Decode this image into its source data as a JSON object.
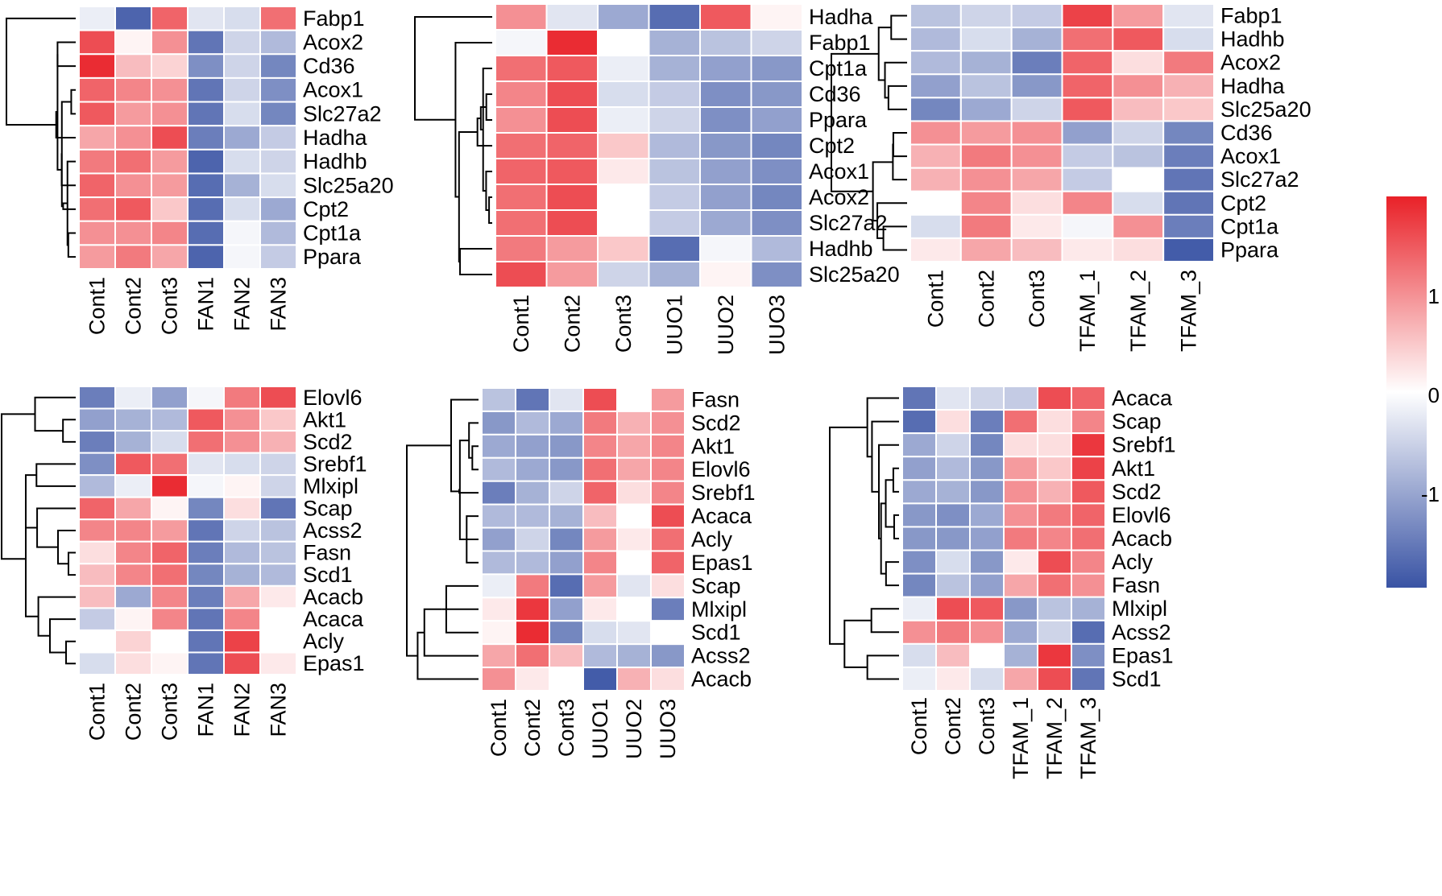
{
  "chart_data": [
    {
      "type": "heatmap",
      "panel": "fatty-acid-oxidation-fan",
      "columns": [
        "Cont1",
        "Cont2",
        "Cont3",
        "FAN1",
        "FAN2",
        "FAN3"
      ],
      "rows": [
        "Fabp1",
        "Acox2",
        "Cd36",
        "Acox1",
        "Slc27a2",
        "Hadha",
        "Hadhb",
        "Slc25a20",
        "Cpt2",
        "Cpt1a",
        "Ppara"
      ],
      "values": [
        [
          -0.2,
          -1.8,
          1.4,
          -0.3,
          -0.4,
          1.3
        ],
        [
          1.6,
          0.1,
          1.0,
          -1.6,
          -0.5,
          -0.8
        ],
        [
          1.9,
          0.6,
          0.4,
          -1.3,
          -0.5,
          -1.4
        ],
        [
          1.4,
          1.1,
          1.0,
          -1.6,
          -0.5,
          -1.3
        ],
        [
          1.5,
          0.9,
          1.0,
          -1.6,
          -0.4,
          -1.4
        ],
        [
          0.8,
          1.0,
          1.6,
          -1.5,
          -1.0,
          -0.6
        ],
        [
          1.2,
          1.3,
          0.9,
          -1.8,
          -0.4,
          -0.5
        ],
        [
          1.4,
          1.0,
          0.9,
          -1.7,
          -0.9,
          -0.4
        ],
        [
          1.3,
          1.5,
          0.5,
          -1.7,
          -0.4,
          -1.0
        ],
        [
          1.0,
          1.0,
          1.1,
          -1.7,
          -0.1,
          -0.8
        ],
        [
          0.9,
          1.2,
          0.8,
          -1.8,
          -0.1,
          -0.6
        ]
      ],
      "clustered": true
    },
    {
      "type": "heatmap",
      "panel": "fatty-acid-oxidation-uuo",
      "columns": [
        "Cont1",
        "Cont2",
        "Cont3",
        "UUO1",
        "UUO2",
        "UUO3"
      ],
      "rows": [
        "Hadha",
        "Fabp1",
        "Cpt1a",
        "Cd36",
        "Ppara",
        "Cpt2",
        "Acox1",
        "Acox2",
        "Slc27a2",
        "Hadhb",
        "Slc25a20"
      ],
      "values": [
        [
          1.0,
          -0.3,
          -1.0,
          -1.7,
          1.5,
          0.1
        ],
        [
          -0.1,
          1.9,
          0.0,
          -0.9,
          -0.7,
          -0.5
        ],
        [
          1.3,
          1.5,
          -0.2,
          -0.9,
          -1.1,
          -1.2
        ],
        [
          1.1,
          1.6,
          -0.4,
          -0.6,
          -1.3,
          -1.2
        ],
        [
          1.0,
          1.6,
          -0.2,
          -0.5,
          -1.3,
          -1.1
        ],
        [
          1.3,
          1.4,
          0.5,
          -0.8,
          -1.2,
          -1.4
        ],
        [
          1.4,
          1.5,
          0.2,
          -0.7,
          -1.1,
          -1.3
        ],
        [
          1.3,
          1.6,
          0.0,
          -0.6,
          -1.1,
          -1.4
        ],
        [
          1.3,
          1.6,
          0.0,
          -0.6,
          -1.0,
          -1.3
        ],
        [
          1.2,
          0.9,
          0.5,
          -1.7,
          -0.1,
          -0.8
        ],
        [
          1.6,
          0.9,
          -0.5,
          -0.9,
          0.1,
          -1.3
        ]
      ],
      "clustered": true
    },
    {
      "type": "heatmap",
      "panel": "fatty-acid-oxidation-tfam",
      "columns": [
        "Cont1",
        "Cont2",
        "Cont3",
        "TFAM_1",
        "TFAM_2",
        "TFAM_3"
      ],
      "rows": [
        "Fabp1",
        "Hadhb",
        "Acox2",
        "Hadha",
        "Slc25a20",
        "Cd36",
        "Acox1",
        "Slc27a2",
        "Cpt2",
        "Cpt1a",
        "Ppara"
      ],
      "values": [
        [
          -0.7,
          -0.5,
          -0.6,
          1.7,
          0.9,
          -0.3
        ],
        [
          -0.8,
          -0.4,
          -0.9,
          1.3,
          1.5,
          -0.4
        ],
        [
          -0.8,
          -0.9,
          -1.5,
          1.4,
          0.3,
          1.2
        ],
        [
          -1.1,
          -0.7,
          -1.2,
          1.4,
          1.0,
          0.7
        ],
        [
          -1.4,
          -1.0,
          -0.5,
          1.5,
          0.6,
          0.5
        ],
        [
          1.0,
          0.9,
          1.0,
          -1.1,
          -0.5,
          -1.4
        ],
        [
          0.7,
          1.2,
          1.0,
          -0.6,
          -0.7,
          -1.5
        ],
        [
          0.7,
          1.0,
          0.8,
          -0.6,
          0.0,
          -1.6
        ],
        [
          0.0,
          1.1,
          0.3,
          1.1,
          -0.4,
          -1.6
        ],
        [
          -0.4,
          1.2,
          0.2,
          -0.1,
          1.0,
          -1.5
        ],
        [
          0.2,
          0.8,
          0.6,
          0.2,
          0.3,
          -1.9
        ]
      ],
      "clustered": true
    },
    {
      "type": "heatmap",
      "panel": "lipogenesis-fan",
      "columns": [
        "Cont1",
        "Cont2",
        "Cont3",
        "FAN1",
        "FAN2",
        "FAN3"
      ],
      "rows": [
        "Elovl6",
        "Akt1",
        "Scd2",
        "Srebf1",
        "Mlxipl",
        "Scap",
        "Acss2",
        "Fasn",
        "Scd1",
        "Acacb",
        "Acaca",
        "Acly",
        "Epas1"
      ],
      "values": [
        [
          -1.5,
          -0.2,
          -1.1,
          -0.1,
          1.2,
          1.6
        ],
        [
          -1.1,
          -0.9,
          -0.8,
          1.5,
          1.0,
          0.5
        ],
        [
          -1.5,
          -0.9,
          -0.4,
          1.3,
          1.0,
          0.7
        ],
        [
          -1.3,
          1.5,
          1.3,
          -0.3,
          -0.4,
          -0.5
        ],
        [
          -0.8,
          -0.2,
          1.9,
          -0.1,
          0.1,
          -0.5
        ],
        [
          1.4,
          0.8,
          0.1,
          -1.4,
          0.3,
          -1.6
        ],
        [
          1.1,
          1.1,
          0.9,
          -1.6,
          -0.5,
          -0.7
        ],
        [
          0.3,
          1.1,
          1.4,
          -1.5,
          -0.8,
          -0.7
        ],
        [
          0.6,
          1.1,
          1.3,
          -1.4,
          -0.9,
          -0.8
        ],
        [
          0.6,
          -1.0,
          1.1,
          -1.5,
          0.8,
          0.2
        ],
        [
          -0.6,
          0.1,
          1.1,
          -1.6,
          1.1,
          0.0
        ],
        [
          0.0,
          0.4,
          0.0,
          -1.6,
          1.7,
          0.0
        ],
        [
          -0.4,
          0.3,
          0.1,
          -1.6,
          1.6,
          0.2
        ]
      ],
      "clustered": true
    },
    {
      "type": "heatmap",
      "panel": "lipogenesis-uuo",
      "columns": [
        "Cont1",
        "Cont2",
        "Cont3",
        "UUO1",
        "UUO2",
        "UUO3"
      ],
      "rows": [
        "Fasn",
        "Scd2",
        "Akt1",
        "Elovl6",
        "Srebf1",
        "Acaca",
        "Acly",
        "Epas1",
        "Scap",
        "Mlxipl",
        "Scd1",
        "Acss2",
        "Acacb"
      ],
      "values": [
        [
          -0.7,
          -1.6,
          -0.3,
          1.6,
          0.0,
          0.9
        ],
        [
          -1.2,
          -0.8,
          -1.0,
          1.2,
          0.7,
          1.0
        ],
        [
          -1.0,
          -1.1,
          -1.2,
          1.1,
          0.8,
          1.1
        ],
        [
          -0.8,
          -1.0,
          -1.2,
          1.3,
          0.8,
          1.1
        ],
        [
          -1.5,
          -0.9,
          -0.5,
          1.4,
          0.3,
          1.1
        ],
        [
          -0.8,
          -0.8,
          -0.9,
          0.6,
          0.0,
          1.6
        ],
        [
          -1.1,
          -0.5,
          -1.4,
          0.9,
          0.2,
          1.3
        ],
        [
          -0.8,
          -0.8,
          -1.1,
          1.1,
          0.0,
          1.4
        ],
        [
          -0.2,
          1.2,
          -1.7,
          0.9,
          -0.3,
          0.3
        ],
        [
          0.2,
          1.8,
          -1.1,
          0.2,
          0.0,
          -1.5
        ],
        [
          0.1,
          1.9,
          -1.4,
          -0.4,
          -0.3,
          0.0
        ],
        [
          0.8,
          1.3,
          0.6,
          -0.8,
          -0.9,
          -1.2
        ],
        [
          1.0,
          0.2,
          0.0,
          -1.9,
          0.7,
          0.3
        ]
      ],
      "clustered": true
    },
    {
      "type": "heatmap",
      "panel": "lipogenesis-tfam",
      "columns": [
        "Cont1",
        "Cont2",
        "Cont3",
        "TFAM_1",
        "TFAM_2",
        "TFAM_3"
      ],
      "rows": [
        "Acaca",
        "Scap",
        "Srebf1",
        "Akt1",
        "Scd2",
        "Elovl6",
        "Acacb",
        "Acly",
        "Fasn",
        "Mlxipl",
        "Acss2",
        "Epas1",
        "Scd1"
      ],
      "values": [
        [
          -1.6,
          -0.3,
          -0.5,
          -0.6,
          1.6,
          1.4
        ],
        [
          -1.7,
          0.3,
          -1.5,
          1.3,
          0.3,
          1.1
        ],
        [
          -1.0,
          -0.5,
          -1.4,
          0.3,
          0.3,
          1.8
        ],
        [
          -1.1,
          -0.8,
          -1.2,
          0.9,
          0.5,
          1.7
        ],
        [
          -1.0,
          -0.9,
          -1.2,
          1.0,
          0.7,
          1.5
        ],
        [
          -1.2,
          -1.3,
          -1.0,
          1.0,
          1.2,
          1.4
        ],
        [
          -1.2,
          -1.2,
          -1.1,
          1.2,
          1.1,
          1.3
        ],
        [
          -1.3,
          -0.4,
          -1.2,
          0.2,
          1.6,
          1.1
        ],
        [
          -1.4,
          -0.7,
          -1.1,
          0.8,
          1.3,
          1.0
        ],
        [
          -0.2,
          1.6,
          1.5,
          -1.2,
          -0.7,
          -0.9
        ],
        [
          1.0,
          1.2,
          1.0,
          -1.0,
          -0.5,
          -1.7
        ],
        [
          -0.4,
          0.6,
          0.0,
          -0.9,
          1.8,
          -1.3
        ],
        [
          -0.2,
          0.2,
          -0.4,
          0.8,
          1.6,
          -1.6
        ]
      ],
      "clustered": true
    }
  ],
  "legend": {
    "type": "colorbar",
    "ticks": [
      "1",
      "0",
      "-1"
    ],
    "tick_values": [
      1,
      0,
      -1
    ],
    "range": [
      -2,
      2
    ],
    "colors": {
      "low": "#3953a4",
      "mid": "#ffffff",
      "high": "#e92128"
    }
  }
}
